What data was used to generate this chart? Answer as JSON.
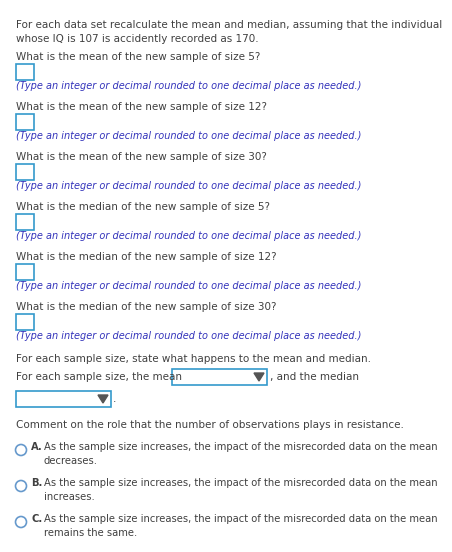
{
  "bg_color": "#ffffff",
  "text_color_black": "#404040",
  "text_color_blue": "#3333bb",
  "box_color": "#3399cc",
  "header_text": "For each data set recalculate the mean and median, assuming that the individual\nwhose IQ is 107 is accidently recorded as 170.",
  "questions": [
    "What is the mean of the new sample of size 5?",
    "What is the mean of the new sample of size 12?",
    "What is the mean of the new sample of size 30?",
    "What is the median of the new sample of size 5?",
    "What is the median of the new sample of size 12?",
    "What is the median of the new sample of size 30?"
  ],
  "hint_text": "(Type an integer or decimal rounded to one decimal place as needed.)",
  "state_text": "For each sample size, state what happens to the mean and median.",
  "dropdown_label": "For each sample size, the mean",
  "dropdown_suffix": ", and the median",
  "comment_text": "Comment on the role that the number of observations plays in resistance.",
  "options": [
    {
      "letter": "A.",
      "text": "As the sample size increases, the impact of the misrecorded data on the mean\ndecreases."
    },
    {
      "letter": "B.",
      "text": "As the sample size increases, the impact of the misrecorded data on the mean\nincreases."
    },
    {
      "letter": "C.",
      "text": "As the sample size increases, the impact of the misrecorded data on the mean\nremains the same."
    }
  ],
  "dropdown_box_color": "#3399cc",
  "radio_color": "#6699cc"
}
